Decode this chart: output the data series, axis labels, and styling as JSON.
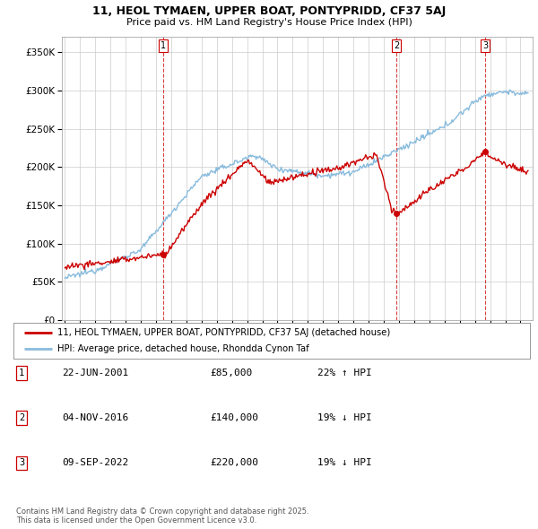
{
  "title": "11, HEOL TYMAEN, UPPER BOAT, PONTYPRIDD, CF37 5AJ",
  "subtitle": "Price paid vs. HM Land Registry's House Price Index (HPI)",
  "ylabel_ticks": [
    "£0",
    "£50K",
    "£100K",
    "£150K",
    "£200K",
    "£250K",
    "£300K",
    "£350K"
  ],
  "ytick_values": [
    0,
    50000,
    100000,
    150000,
    200000,
    250000,
    300000,
    350000
  ],
  "ylim": [
    0,
    370000
  ],
  "xlim_start": 1994.8,
  "xlim_end": 2025.8,
  "sale_dates": [
    2001.47,
    2016.84,
    2022.69
  ],
  "sale_prices": [
    85000,
    140000,
    220000
  ],
  "sale_labels": [
    "1",
    "2",
    "3"
  ],
  "legend_entries": [
    "11, HEOL TYMAEN, UPPER BOAT, PONTYPRIDD, CF37 5AJ (detached house)",
    "HPI: Average price, detached house, Rhondda Cynon Taf"
  ],
  "table_rows": [
    [
      "1",
      "22-JUN-2001",
      "£85,000",
      "22% ↑ HPI"
    ],
    [
      "2",
      "04-NOV-2016",
      "£140,000",
      "19% ↓ HPI"
    ],
    [
      "3",
      "09-SEP-2022",
      "£220,000",
      "19% ↓ HPI"
    ]
  ],
  "footnote": "Contains HM Land Registry data © Crown copyright and database right 2025.\nThis data is licensed under the Open Government Licence v3.0.",
  "line_color_red": "#cc0000",
  "line_color_blue": "#88bbdd",
  "dashed_line_color": "#cc0000",
  "background_color": "#ffffff",
  "grid_color": "#cccccc"
}
